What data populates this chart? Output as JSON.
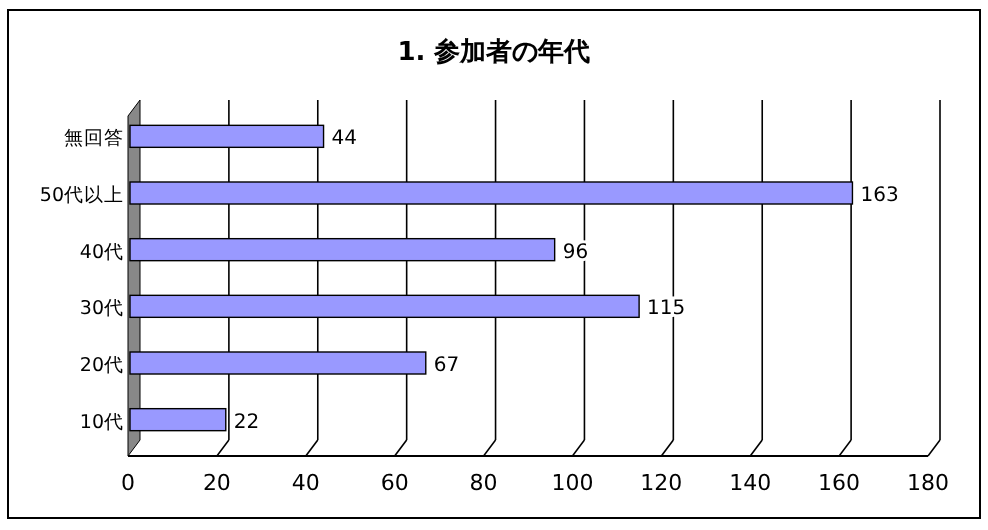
{
  "chart_data": {
    "type": "bar",
    "orientation": "horizontal",
    "title": "1. 参加者の年代",
    "categories": [
      "無回答",
      "50代以上",
      "40代",
      "30代",
      "20代",
      "10代"
    ],
    "values": [
      44,
      163,
      96,
      115,
      67,
      22
    ],
    "color": "#9999ff",
    "xlim": [
      0,
      180
    ],
    "xticks": [
      0,
      20,
      40,
      60,
      80,
      100,
      120,
      140,
      160,
      180
    ],
    "grid": "x",
    "data_labels": true
  }
}
